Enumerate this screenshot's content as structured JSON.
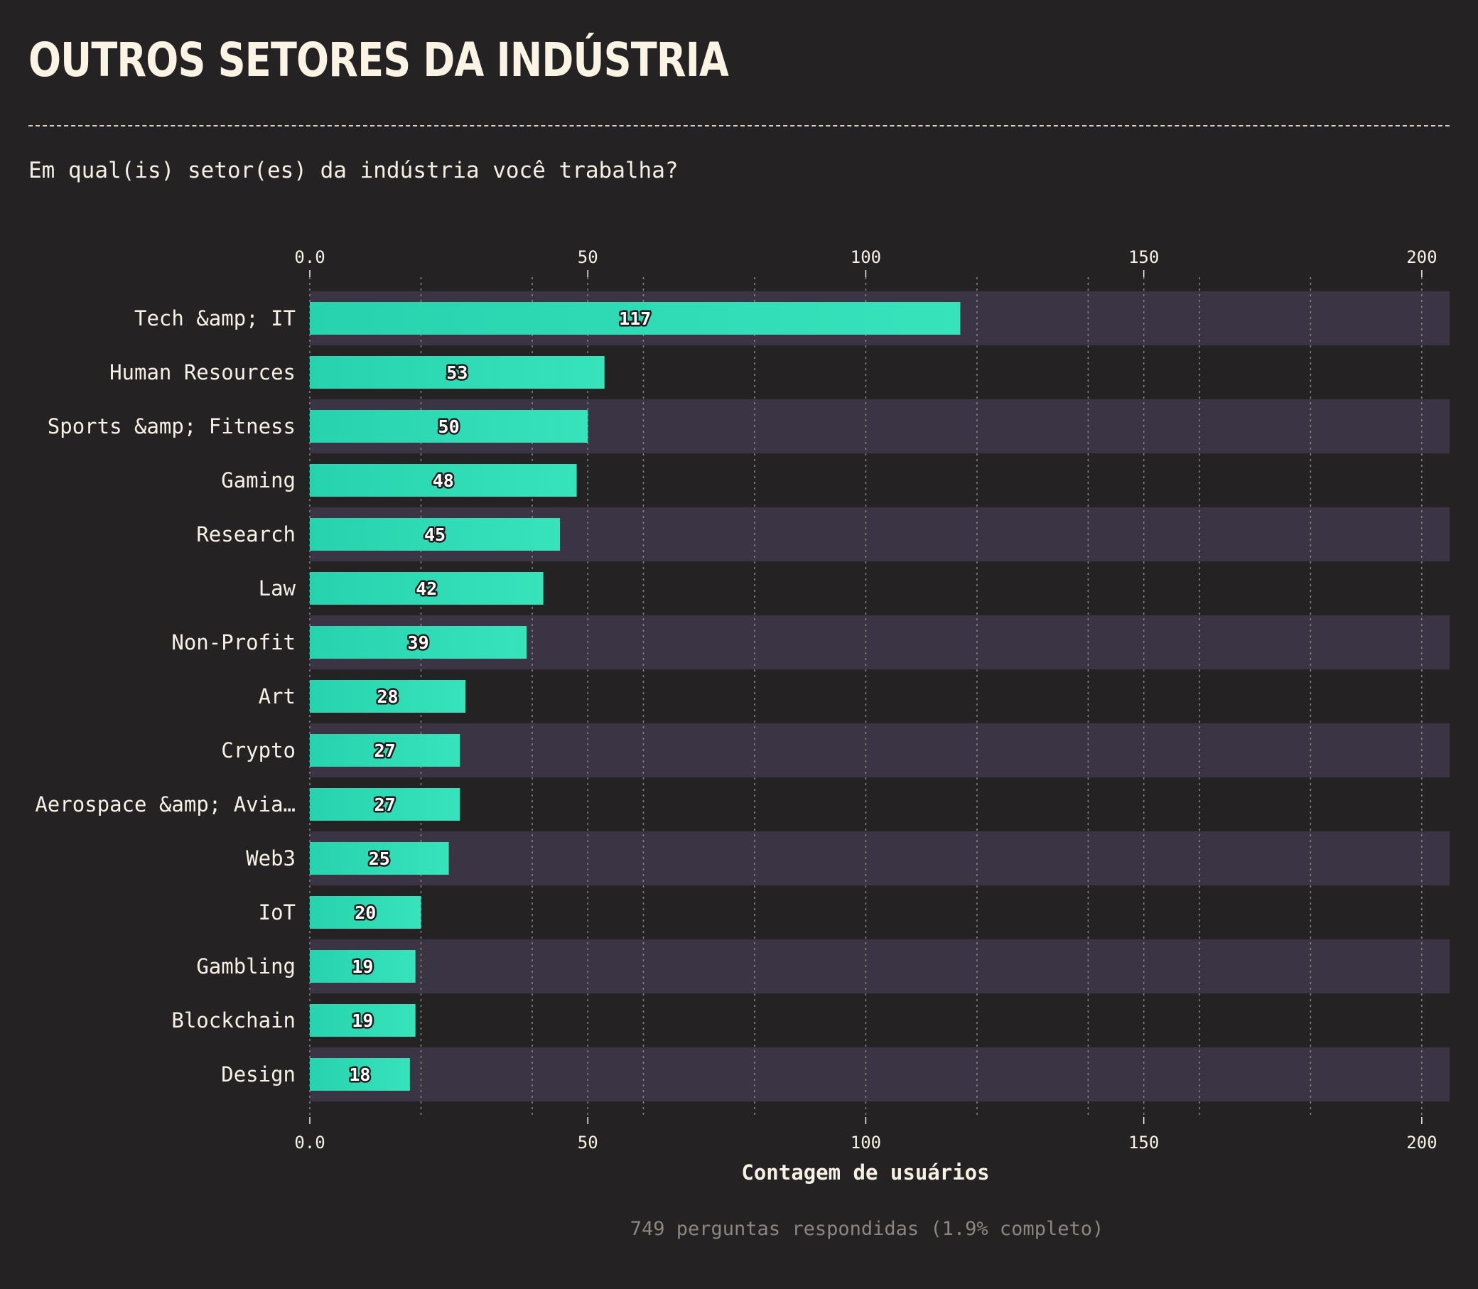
{
  "title": "OUTROS SETORES DA INDÚSTRIA",
  "question": "Em qual(is) setor(es) da indústria você trabalha?",
  "footer": "749 perguntas respondidas (1.9% completo)",
  "colors": {
    "background": "#252223",
    "band": "#3a3444",
    "bar_start": "#26d3ae",
    "bar_end": "#37e3bb",
    "text": "#f6f1e4",
    "grid": "#8a857f"
  },
  "chart_data": {
    "type": "bar",
    "orientation": "horizontal",
    "categories": [
      "Tech &amp; IT",
      "Human Resources",
      "Sports &amp; Fitness",
      "Gaming",
      "Research",
      "Law",
      "Non-Profit",
      "Art",
      "Crypto",
      "Aerospace &amp; Avia…",
      "Web3",
      "IoT",
      "Gambling",
      "Blockchain",
      "Design"
    ],
    "values": [
      117,
      53,
      50,
      48,
      45,
      42,
      39,
      28,
      27,
      27,
      25,
      20,
      19,
      19,
      18
    ],
    "xlabel": "Contagem de usuários",
    "xlim": [
      0,
      205
    ],
    "ticks": [
      0,
      50,
      100,
      150,
      200
    ],
    "tick_labels": [
      "0.0",
      "50",
      "100",
      "150",
      "200"
    ],
    "minor_grid": [
      20,
      40,
      60,
      80,
      120,
      140,
      160,
      180
    ],
    "axis_position": "top and bottom",
    "alternating_row_bands": true,
    "data_labels": true,
    "grid": true
  }
}
